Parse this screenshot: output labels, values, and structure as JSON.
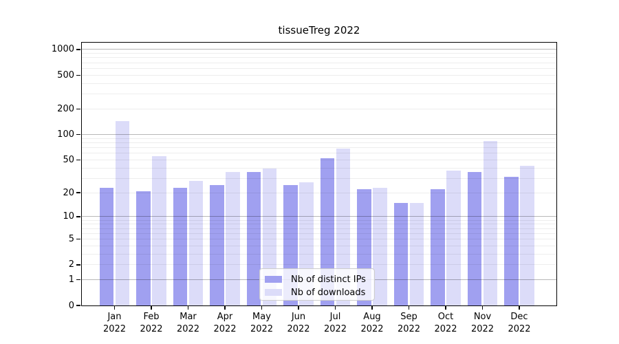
{
  "chart_data": {
    "type": "bar",
    "title": "tissueTreg 2022",
    "categories": [
      "Jan",
      "Feb",
      "Mar",
      "Apr",
      "May",
      "Jun",
      "Jul",
      "Aug",
      "Sep",
      "Oct",
      "Nov",
      "Dec"
    ],
    "year": "2022",
    "series": [
      {
        "name": "Nb of distinct IPs",
        "color": "#a0a0f0",
        "values": [
          23,
          21,
          23,
          25,
          36,
          25,
          52,
          22,
          15,
          22,
          36,
          31
        ]
      },
      {
        "name": "Nb of downloads",
        "color": "#dcdcf9",
        "values": [
          145,
          55,
          28,
          36,
          39,
          27,
          68,
          23,
          15,
          37,
          84,
          42
        ]
      }
    ],
    "xlabel": "",
    "ylabel": "",
    "y_ticks": [
      0,
      1,
      2,
      5,
      10,
      20,
      50,
      100,
      200,
      500,
      1000
    ],
    "y_major_gridlines": [
      1,
      10,
      100,
      1000
    ],
    "y_scale": "log1p",
    "ylim": [
      0,
      1230
    ],
    "grid": true,
    "legend_position": "lower center"
  }
}
